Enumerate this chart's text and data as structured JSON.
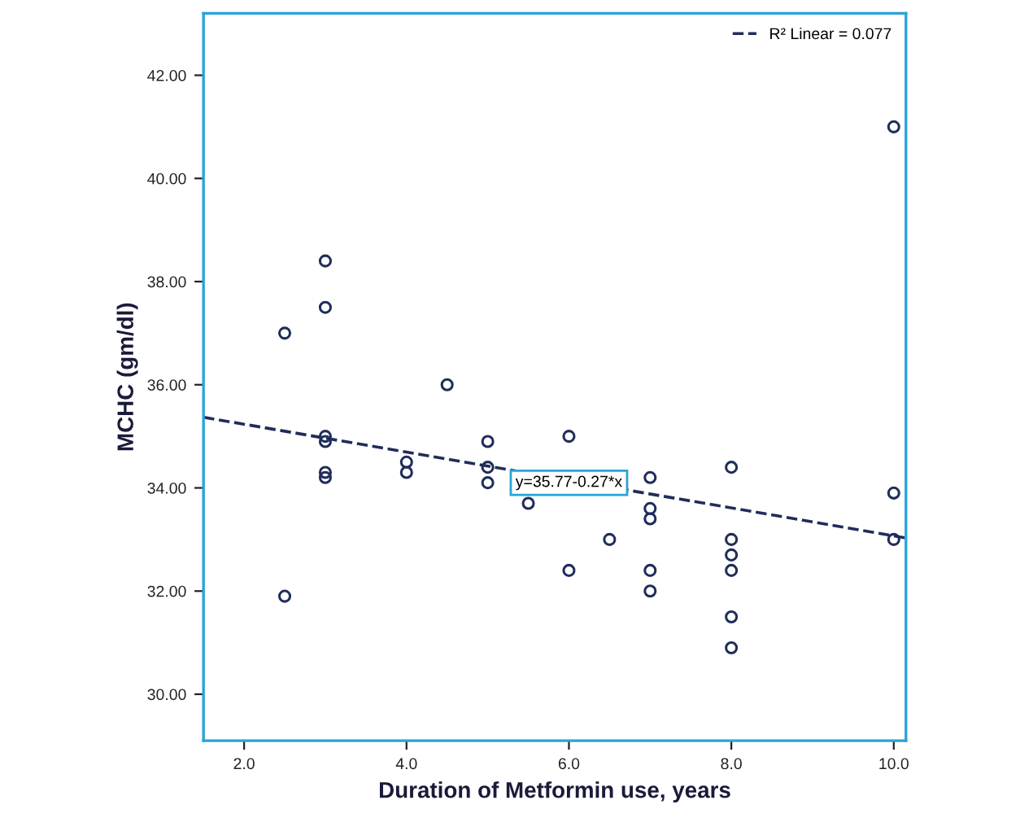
{
  "chart_data": {
    "type": "scatter",
    "xlabel": "Duration of Metformin use, years",
    "ylabel": "MCHC (gm/dl)",
    "xlim": [
      1.5,
      10.15
    ],
    "ylim": [
      29.1,
      43.2
    ],
    "xticks": [
      {
        "value": 2,
        "label": "2.0"
      },
      {
        "value": 4,
        "label": "4.0"
      },
      {
        "value": 6,
        "label": "6.0"
      },
      {
        "value": 8,
        "label": "8.0"
      },
      {
        "value": 10,
        "label": "10.0"
      }
    ],
    "yticks": [
      {
        "value": 30,
        "label": "30.00"
      },
      {
        "value": 32,
        "label": "32.00"
      },
      {
        "value": 34,
        "label": "34.00"
      },
      {
        "value": 36,
        "label": "36.00"
      },
      {
        "value": 38,
        "label": "38.00"
      },
      {
        "value": 40,
        "label": "40.00"
      },
      {
        "value": 42,
        "label": "42.00"
      }
    ],
    "grid": false,
    "legend": "top right",
    "marker": "circle",
    "series": [
      {
        "color": "#1f2d5a",
        "x": [
          2.5,
          2.5,
          3.0,
          3.0,
          3.0,
          3.0,
          3.0,
          3.0,
          4.0,
          4.0,
          4.5,
          5.0,
          5.0,
          5.0,
          5.5,
          6.0,
          6.0,
          6.5,
          7.0,
          7.0,
          7.0,
          7.0,
          7.0,
          8.0,
          8.0,
          8.0,
          8.0,
          8.0,
          8.0,
          10.0,
          10.0,
          10.0
        ],
        "values": [
          37.0,
          31.9,
          38.4,
          37.5,
          35.0,
          34.9,
          34.3,
          34.2,
          34.5,
          34.3,
          36.0,
          34.9,
          34.4,
          34.1,
          33.7,
          35.0,
          32.4,
          33.0,
          34.2,
          33.6,
          33.4,
          32.4,
          32.0,
          34.4,
          33.0,
          32.7,
          32.4,
          31.5,
          30.9,
          41.0,
          33.9,
          33.0
        ]
      },
      {
        "type": "line",
        "name": "R² Linear = 0.077",
        "color": "#1f2d5a",
        "line_style": "dashed",
        "marker": "none",
        "x": [
          1.5,
          10.15
        ],
        "values": [
          35.37,
          33.03
        ]
      }
    ],
    "annotations": [
      {
        "text": "y=35.77-0.27*x",
        "x": 6.0,
        "y": 34.1
      }
    ]
  }
}
